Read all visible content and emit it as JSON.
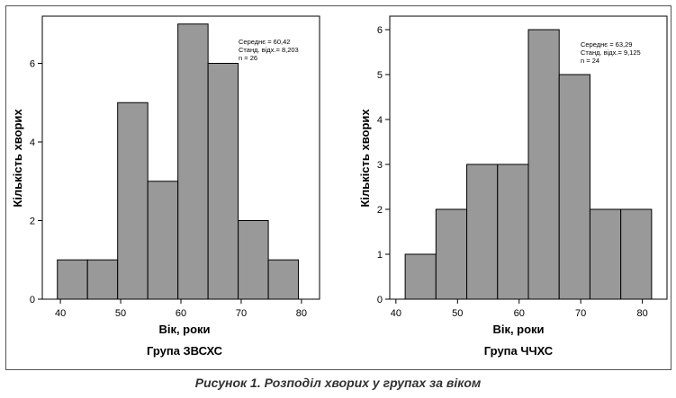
{
  "caption": "Рисунок 1. Розподіл хворих у групах за віком",
  "colors": {
    "bar_fill": "#999999",
    "bar_stroke": "#000000",
    "axis": "#000000",
    "frame": "#555555"
  },
  "chart_data": [
    {
      "type": "bar",
      "title": "Група ЗВСХС",
      "xlabel": "Вік, роки",
      "ylabel": "Кількість хворих",
      "xlim": [
        37,
        83
      ],
      "ylim": [
        0,
        7.2
      ],
      "x_ticks": [
        40,
        50,
        60,
        70,
        80
      ],
      "y_ticks": [
        0,
        2,
        4,
        6
      ],
      "bin_edges": [
        39.5,
        44.5,
        49.5,
        54.5,
        59.5,
        64.5,
        69.5,
        74.5,
        79.5
      ],
      "values": [
        1,
        1,
        5,
        3,
        7,
        6,
        2,
        1
      ],
      "stats": [
        "Середнє = 60,42",
        "Станд. відх.= 8,203",
        "n = 26"
      ],
      "grid": false
    },
    {
      "type": "bar",
      "title": "Група ЧЧХС",
      "xlabel": "Вік, роки",
      "ylabel": "Кількість хворих",
      "xlim": [
        39,
        84
      ],
      "ylim": [
        0,
        6.3
      ],
      "x_ticks": [
        40,
        50,
        60,
        70,
        80
      ],
      "y_ticks": [
        0,
        1,
        2,
        3,
        4,
        5,
        6
      ],
      "bin_edges": [
        41.5,
        46.5,
        51.5,
        56.5,
        61.5,
        66.5,
        71.5,
        76.5,
        81.5
      ],
      "values": [
        1,
        2,
        3,
        3,
        6,
        5,
        2,
        2
      ],
      "stats": [
        "Середнє = 63,29",
        "Станд. відх.= 9,125",
        "n = 24"
      ],
      "grid": false
    }
  ]
}
